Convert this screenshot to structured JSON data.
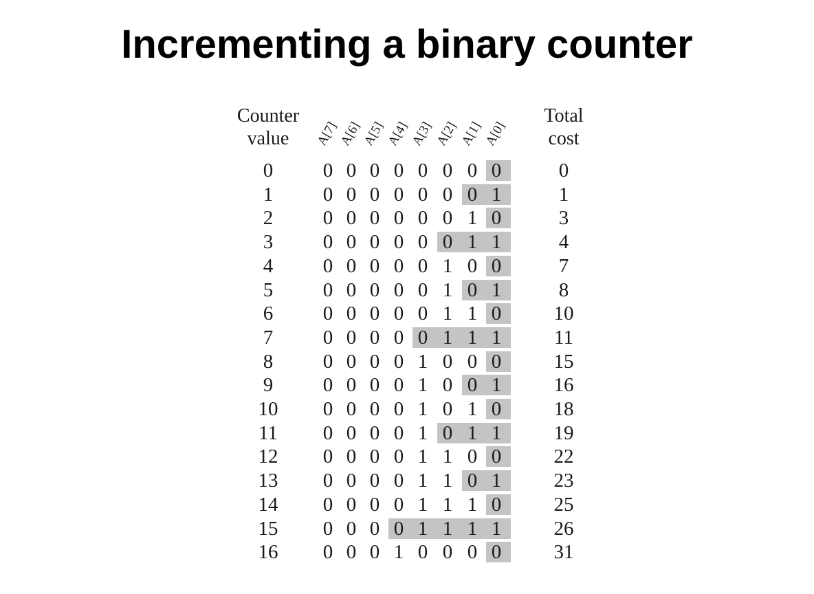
{
  "title": "Incrementing a binary counter",
  "headers": {
    "counter": [
      "Counter",
      "value"
    ],
    "cost": [
      "Total",
      "cost"
    ],
    "bits": [
      "A[7]",
      "A[6]",
      "A[5]",
      "A[4]",
      "A[3]",
      "A[2]",
      "A[1]",
      "A[0]"
    ]
  },
  "rows": [
    {
      "value": "0",
      "bits": [
        "0",
        "0",
        "0",
        "0",
        "0",
        "0",
        "0",
        "0"
      ],
      "flipped": 1,
      "cost": "0"
    },
    {
      "value": "1",
      "bits": [
        "0",
        "0",
        "0",
        "0",
        "0",
        "0",
        "0",
        "1"
      ],
      "flipped": 2,
      "cost": "1"
    },
    {
      "value": "2",
      "bits": [
        "0",
        "0",
        "0",
        "0",
        "0",
        "0",
        "1",
        "0"
      ],
      "flipped": 1,
      "cost": "3"
    },
    {
      "value": "3",
      "bits": [
        "0",
        "0",
        "0",
        "0",
        "0",
        "0",
        "1",
        "1"
      ],
      "flipped": 3,
      "cost": "4"
    },
    {
      "value": "4",
      "bits": [
        "0",
        "0",
        "0",
        "0",
        "0",
        "1",
        "0",
        "0"
      ],
      "flipped": 1,
      "cost": "7"
    },
    {
      "value": "5",
      "bits": [
        "0",
        "0",
        "0",
        "0",
        "0",
        "1",
        "0",
        "1"
      ],
      "flipped": 2,
      "cost": "8"
    },
    {
      "value": "6",
      "bits": [
        "0",
        "0",
        "0",
        "0",
        "0",
        "1",
        "1",
        "0"
      ],
      "flipped": 1,
      "cost": "10"
    },
    {
      "value": "7",
      "bits": [
        "0",
        "0",
        "0",
        "0",
        "0",
        "1",
        "1",
        "1"
      ],
      "flipped": 4,
      "cost": "11"
    },
    {
      "value": "8",
      "bits": [
        "0",
        "0",
        "0",
        "0",
        "1",
        "0",
        "0",
        "0"
      ],
      "flipped": 1,
      "cost": "15"
    },
    {
      "value": "9",
      "bits": [
        "0",
        "0",
        "0",
        "0",
        "1",
        "0",
        "0",
        "1"
      ],
      "flipped": 2,
      "cost": "16"
    },
    {
      "value": "10",
      "bits": [
        "0",
        "0",
        "0",
        "0",
        "1",
        "0",
        "1",
        "0"
      ],
      "flipped": 1,
      "cost": "18"
    },
    {
      "value": "11",
      "bits": [
        "0",
        "0",
        "0",
        "0",
        "1",
        "0",
        "1",
        "1"
      ],
      "flipped": 3,
      "cost": "19"
    },
    {
      "value": "12",
      "bits": [
        "0",
        "0",
        "0",
        "0",
        "1",
        "1",
        "0",
        "0"
      ],
      "flipped": 1,
      "cost": "22"
    },
    {
      "value": "13",
      "bits": [
        "0",
        "0",
        "0",
        "0",
        "1",
        "1",
        "0",
        "1"
      ],
      "flipped": 2,
      "cost": "23"
    },
    {
      "value": "14",
      "bits": [
        "0",
        "0",
        "0",
        "0",
        "1",
        "1",
        "1",
        "0"
      ],
      "flipped": 1,
      "cost": "25"
    },
    {
      "value": "15",
      "bits": [
        "0",
        "0",
        "0",
        "0",
        "1",
        "1",
        "1",
        "1"
      ],
      "flipped": 5,
      "cost": "26"
    },
    {
      "value": "16",
      "bits": [
        "0",
        "0",
        "0",
        "1",
        "0",
        "0",
        "0",
        "0"
      ],
      "flipped": 1,
      "cost": "31"
    }
  ],
  "colors": {
    "highlight": "#c4c4c4",
    "text": "#1a1a1a"
  }
}
